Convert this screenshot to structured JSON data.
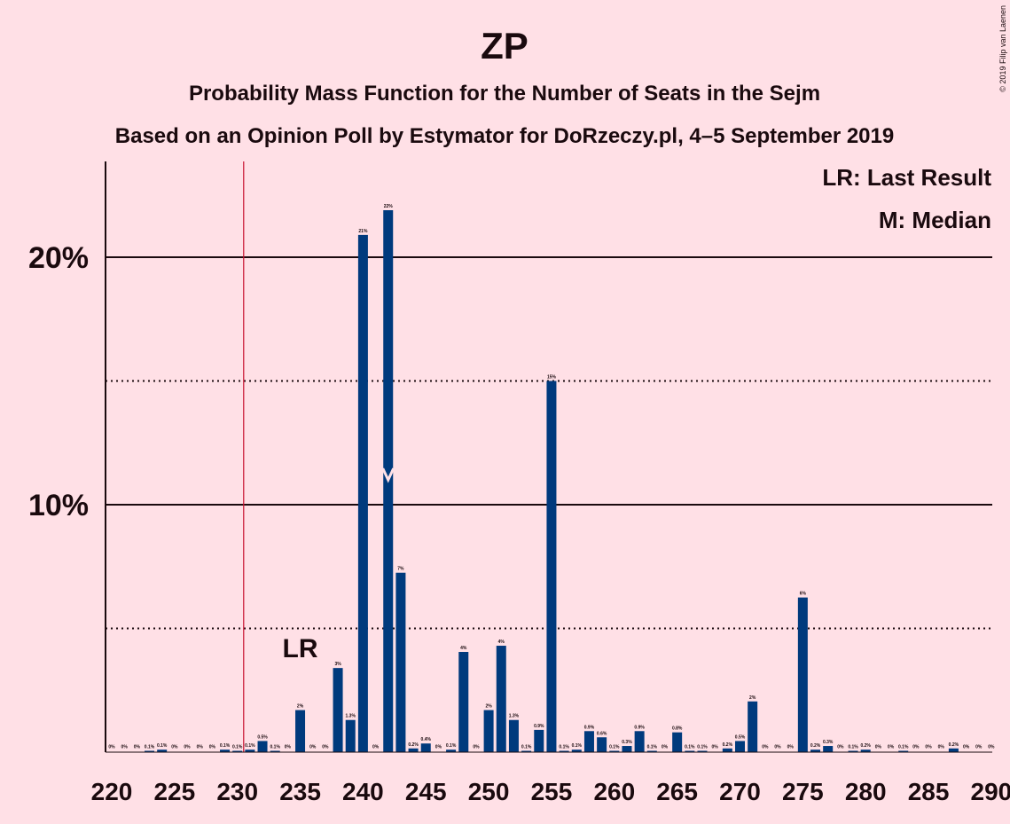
{
  "chart_data": {
    "type": "bar",
    "title": "ZP",
    "subtitle": "Probability Mass Function for the Number of Seats in the Sejm",
    "subtitle2": "Based on an Opinion Poll by Estymator for DoRzeczy.pl, 4–5 September 2019",
    "credit": "© 2019 Filip van Laenen",
    "xlabel": "",
    "ylabel": "",
    "ylim": [
      0,
      24
    ],
    "xlim": [
      220,
      290
    ],
    "x_ticks": [
      220,
      225,
      230,
      235,
      240,
      245,
      250,
      255,
      260,
      265,
      270,
      275,
      280,
      285,
      290
    ],
    "y_ticks": [
      {
        "value": 10,
        "label": "10%"
      },
      {
        "value": 20,
        "label": "20%"
      }
    ],
    "dotted_gridlines": [
      5,
      15
    ],
    "legend": {
      "position": "top-right",
      "entries": [
        "LR: Last Result",
        "M: Median"
      ]
    },
    "last_result": {
      "seats": 230.5,
      "label": "LR",
      "label_at": 235
    },
    "median": {
      "seats": 242,
      "marker_value": 11
    },
    "color_bar": "#003A7D",
    "color_last_result": "#C8102E",
    "bars": [
      {
        "seats": 220,
        "value": 0,
        "label": "0%"
      },
      {
        "seats": 221,
        "value": 0,
        "label": "0%"
      },
      {
        "seats": 222,
        "value": 0,
        "label": "0%"
      },
      {
        "seats": 223,
        "value": 0.05,
        "label": "0.1%"
      },
      {
        "seats": 224,
        "value": 0.1,
        "label": "0.1%"
      },
      {
        "seats": 225,
        "value": 0,
        "label": "0%"
      },
      {
        "seats": 226,
        "value": 0,
        "label": "0%"
      },
      {
        "seats": 227,
        "value": 0,
        "label": "0%"
      },
      {
        "seats": 228,
        "value": 0,
        "label": "0%"
      },
      {
        "seats": 229,
        "value": 0.1,
        "label": "0.1%"
      },
      {
        "seats": 230,
        "value": 0.05,
        "label": "0.1%"
      },
      {
        "seats": 231,
        "value": 0.1,
        "label": "0.1%"
      },
      {
        "seats": 232,
        "value": 0.45,
        "label": "0.5%"
      },
      {
        "seats": 233,
        "value": 0.05,
        "label": "0.1%"
      },
      {
        "seats": 234,
        "value": 0,
        "label": "0%"
      },
      {
        "seats": 235,
        "value": 1.7,
        "label": "2%"
      },
      {
        "seats": 236,
        "value": 0,
        "label": "0%"
      },
      {
        "seats": 237,
        "value": 0,
        "label": "0%"
      },
      {
        "seats": 238,
        "value": 3.4,
        "label": "3%"
      },
      {
        "seats": 239,
        "value": 1.3,
        "label": "1.3%"
      },
      {
        "seats": 240,
        "value": 20.9,
        "label": "21%"
      },
      {
        "seats": 241,
        "value": 0,
        "label": "0%"
      },
      {
        "seats": 242,
        "value": 21.9,
        "label": "22%"
      },
      {
        "seats": 243,
        "value": 7.25,
        "label": "7%"
      },
      {
        "seats": 244,
        "value": 0.15,
        "label": "0.2%"
      },
      {
        "seats": 245,
        "value": 0.35,
        "label": "0.4%"
      },
      {
        "seats": 246,
        "value": 0,
        "label": "0%"
      },
      {
        "seats": 247,
        "value": 0.1,
        "label": "0.1%"
      },
      {
        "seats": 248,
        "value": 4.05,
        "label": "4%"
      },
      {
        "seats": 249,
        "value": 0,
        "label": "0%"
      },
      {
        "seats": 250,
        "value": 1.7,
        "label": "2%"
      },
      {
        "seats": 251,
        "value": 4.3,
        "label": "4%"
      },
      {
        "seats": 252,
        "value": 1.3,
        "label": "1.3%"
      },
      {
        "seats": 253,
        "value": 0.05,
        "label": "0.1%"
      },
      {
        "seats": 254,
        "value": 0.9,
        "label": "0.9%"
      },
      {
        "seats": 255,
        "value": 15,
        "label": "15%"
      },
      {
        "seats": 256,
        "value": 0.05,
        "label": "0.1%"
      },
      {
        "seats": 257,
        "value": 0.1,
        "label": "0.1%"
      },
      {
        "seats": 258,
        "value": 0.85,
        "label": "0.9%"
      },
      {
        "seats": 259,
        "value": 0.6,
        "label": "0.6%"
      },
      {
        "seats": 260,
        "value": 0.05,
        "label": "0.1%"
      },
      {
        "seats": 261,
        "value": 0.25,
        "label": "0.3%"
      },
      {
        "seats": 262,
        "value": 0.85,
        "label": "0.9%"
      },
      {
        "seats": 263,
        "value": 0.05,
        "label": "0.1%"
      },
      {
        "seats": 264,
        "value": 0,
        "label": "0%"
      },
      {
        "seats": 265,
        "value": 0.8,
        "label": "0.8%"
      },
      {
        "seats": 266,
        "value": 0.05,
        "label": "0.1%"
      },
      {
        "seats": 267,
        "value": 0.05,
        "label": "0.1%"
      },
      {
        "seats": 268,
        "value": 0,
        "label": "0%"
      },
      {
        "seats": 269,
        "value": 0.15,
        "label": "0.2%"
      },
      {
        "seats": 270,
        "value": 0.45,
        "label": "0.5%"
      },
      {
        "seats": 271,
        "value": 2.05,
        "label": "2%"
      },
      {
        "seats": 272,
        "value": 0,
        "label": "0%"
      },
      {
        "seats": 273,
        "value": 0,
        "label": "0%"
      },
      {
        "seats": 274,
        "value": 0,
        "label": "0%"
      },
      {
        "seats": 275,
        "value": 6.25,
        "label": "6%"
      },
      {
        "seats": 276,
        "value": 0.1,
        "label": "0.2%"
      },
      {
        "seats": 277,
        "value": 0.25,
        "label": "0.3%"
      },
      {
        "seats": 278,
        "value": 0,
        "label": "0%"
      },
      {
        "seats": 279,
        "value": 0.05,
        "label": "0.1%"
      },
      {
        "seats": 280,
        "value": 0.1,
        "label": "0.2%"
      },
      {
        "seats": 281,
        "value": 0,
        "label": "0%"
      },
      {
        "seats": 282,
        "value": 0,
        "label": "0%"
      },
      {
        "seats": 283,
        "value": 0.05,
        "label": "0.1%"
      },
      {
        "seats": 284,
        "value": 0,
        "label": "0%"
      },
      {
        "seats": 285,
        "value": 0,
        "label": "0%"
      },
      {
        "seats": 286,
        "value": 0,
        "label": "0%"
      },
      {
        "seats": 287,
        "value": 0.15,
        "label": "0.2%"
      },
      {
        "seats": 288,
        "value": 0,
        "label": "0%"
      },
      {
        "seats": 289,
        "value": 0,
        "label": "0%"
      },
      {
        "seats": 290,
        "value": 0,
        "label": "0%"
      }
    ]
  }
}
